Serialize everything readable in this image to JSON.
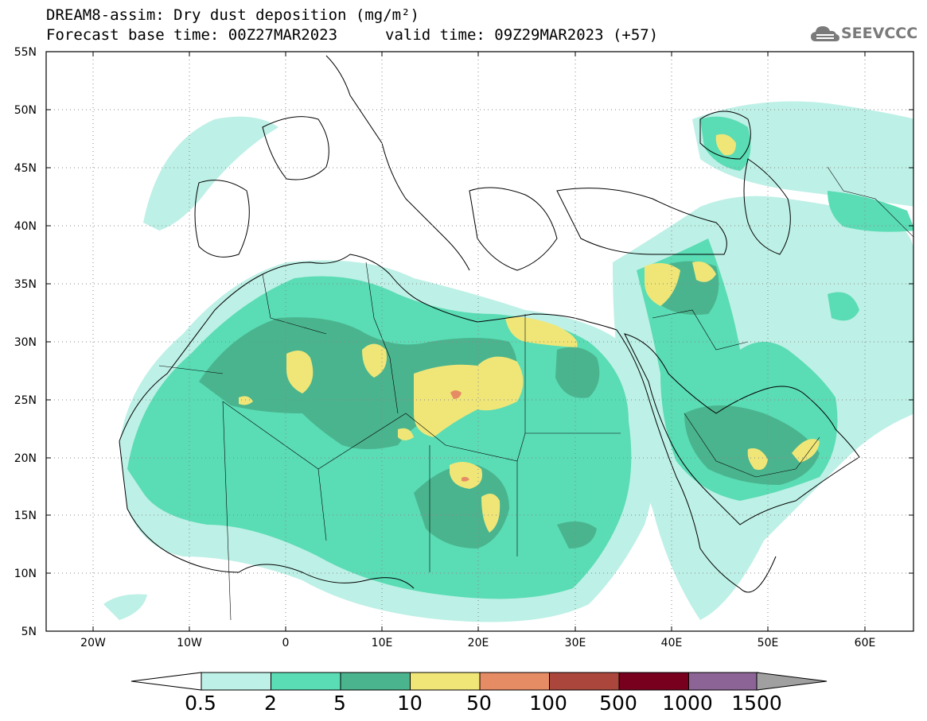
{
  "header": {
    "title": "DREAM8-assim: Dry dust deposition (mg/m²)",
    "base_time": "Forecast base time: 00Z27MAR2023",
    "valid_time": "valid time: 09Z29MAR2023 (+57)",
    "logo_text": "SEEVCCC"
  },
  "axes": {
    "lat_labels": [
      "55N",
      "50N",
      "45N",
      "40N",
      "35N",
      "30N",
      "25N",
      "20N",
      "15N",
      "10N",
      "5N"
    ],
    "lat_values": [
      55,
      50,
      45,
      40,
      35,
      30,
      25,
      20,
      15,
      10,
      5
    ],
    "lon_labels": [
      "20W",
      "10W",
      "0",
      "10E",
      "20E",
      "30E",
      "40E",
      "50E",
      "60E"
    ],
    "lon_values": [
      -20,
      -10,
      0,
      10,
      20,
      30,
      40,
      50,
      60
    ],
    "lon_range": [
      -25,
      65
    ],
    "lat_range": [
      5,
      55
    ],
    "grid": "dotted"
  },
  "colorbar": {
    "labels": [
      "0.5",
      "2",
      "5",
      "10",
      "50",
      "100",
      "500",
      "1000",
      "1500"
    ],
    "colors": [
      "#bdf0e6",
      "#5adcb4",
      "#4ab48e",
      "#f0e678",
      "#e68c64",
      "#aa463c",
      "#78001e",
      "#8c6496",
      "#a0a0a0"
    ]
  }
}
